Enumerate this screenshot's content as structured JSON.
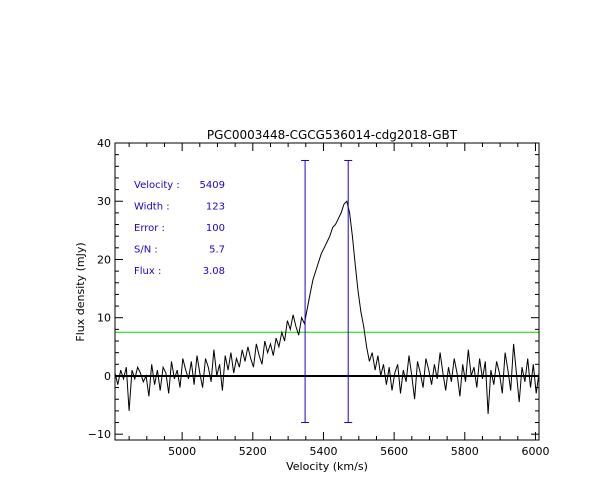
{
  "chart_data": {
    "type": "line",
    "title": "PGC0003448-CGCG536014-cdg2018-GBT",
    "xlabel": "Velocity (km/s)",
    "ylabel": "Flux density (mJy)",
    "xlim": [
      4810,
      6010
    ],
    "ylim": [
      -11,
      40
    ],
    "xticks": [
      5000,
      5200,
      5400,
      5600,
      5800,
      6000
    ],
    "yticks": [
      -10,
      0,
      10,
      20,
      30,
      40
    ],
    "xtick_labels": [
      "5000",
      "5200",
      "5400",
      "5600",
      "5800",
      "6000"
    ],
    "ytick_labels": [
      "−10",
      "0",
      "10",
      "20",
      "30",
      "40"
    ],
    "grid": false,
    "annotations": [
      {
        "label": "Velocity :",
        "value": "5409"
      },
      {
        "label": "Width :",
        "value": "123"
      },
      {
        "label": "Error :",
        "value": "100"
      },
      {
        "label": "S/N :",
        "value": "5.7"
      },
      {
        "label": "Flux :",
        "value": "3.08"
      }
    ],
    "colors": {
      "spectrum": "#000000",
      "markers": "#2200cc",
      "rms": "#00dd00",
      "annotation_text": "#2200cc",
      "zero_line": "#000000"
    },
    "zero_line": 0,
    "rms_line": 7.5,
    "velocity_markers": [
      5348,
      5470
    ],
    "marker_y_range": [
      -8,
      37
    ],
    "series": [
      {
        "x": [
          4810,
          4818,
          4826,
          4834,
          4842,
          4850,
          4858,
          4866,
          4874,
          4882,
          4890,
          4898,
          4906,
          4914,
          4922,
          4930,
          4938,
          4946,
          4954,
          4962,
          4970,
          4978,
          4986,
          4994,
          5002,
          5010,
          5018,
          5026,
          5034,
          5042,
          5050,
          5058,
          5066,
          5074,
          5082,
          5090,
          5098,
          5106,
          5114,
          5122,
          5130,
          5138,
          5146,
          5154,
          5162,
          5170,
          5178,
          5186,
          5194,
          5202,
          5210,
          5218,
          5226,
          5234,
          5242,
          5250,
          5258,
          5266,
          5274,
          5282,
          5290,
          5298,
          5306,
          5314,
          5322,
          5330,
          5338,
          5346,
          5354,
          5362,
          5370,
          5378,
          5386,
          5394,
          5402,
          5410,
          5418,
          5426,
          5434,
          5442,
          5450,
          5458,
          5466,
          5474,
          5482,
          5490,
          5498,
          5506,
          5514,
          5522,
          5530,
          5538,
          5546,
          5554,
          5562,
          5570,
          5578,
          5586,
          5594,
          5602,
          5610,
          5618,
          5626,
          5634,
          5642,
          5650,
          5658,
          5666,
          5674,
          5682,
          5690,
          5698,
          5706,
          5714,
          5722,
          5730,
          5738,
          5746,
          5754,
          5762,
          5770,
          5778,
          5786,
          5794,
          5802,
          5810,
          5818,
          5826,
          5834,
          5842,
          5850,
          5858,
          5866,
          5874,
          5882,
          5890,
          5898,
          5906,
          5914,
          5922,
          5930,
          5938,
          5946,
          5954,
          5962,
          5970,
          5978,
          5986,
          5994,
          6002,
          6010
        ],
        "y": [
          0.5,
          -1.5,
          1.0,
          -0.5,
          1.5,
          -6.0,
          1.0,
          -0.5,
          1.5,
          0.5,
          -1.0,
          0.0,
          -3.5,
          2.0,
          -1.5,
          1.0,
          -2.5,
          1.5,
          0.5,
          -3.0,
          2.5,
          -0.5,
          1.0,
          -2.0,
          3.0,
          1.0,
          -0.5,
          2.5,
          -1.5,
          3.5,
          0.5,
          -2.0,
          3.0,
          1.5,
          -1.0,
          4.5,
          0.0,
          2.0,
          -2.5,
          3.5,
          1.0,
          4.0,
          0.5,
          3.0,
          1.5,
          4.5,
          2.5,
          5.0,
          3.0,
          1.5,
          5.5,
          3.5,
          2.0,
          6.0,
          4.0,
          5.5,
          3.5,
          6.5,
          5.0,
          7.5,
          6.0,
          9.5,
          8.0,
          10.5,
          8.5,
          7.0,
          10.0,
          9.0,
          11.5,
          14.0,
          16.5,
          18.0,
          19.5,
          21.0,
          22.0,
          23.0,
          24.0,
          25.5,
          26.0,
          27.0,
          28.0,
          29.5,
          30.0,
          28.0,
          24.0,
          19.0,
          14.5,
          11.0,
          8.5,
          5.0,
          2.5,
          4.0,
          1.0,
          3.5,
          0.0,
          2.0,
          -1.5,
          1.5,
          -2.5,
          0.5,
          2.0,
          -3.0,
          1.0,
          -1.0,
          3.5,
          0.0,
          -4.0,
          2.5,
          0.5,
          -2.0,
          3.0,
          1.0,
          -1.5,
          2.0,
          -0.5,
          4.0,
          0.5,
          -2.5,
          1.5,
          -1.0,
          3.0,
          0.5,
          -3.5,
          2.0,
          -1.0,
          4.5,
          0.0,
          1.5,
          -2.0,
          3.0,
          -0.5,
          2.5,
          -6.5,
          1.0,
          -1.5,
          2.5,
          0.5,
          -3.0,
          4.0,
          1.0,
          -2.5,
          5.5,
          0.5,
          -4.5,
          1.5,
          -1.0,
          3.0,
          -2.0,
          2.0,
          -3.0,
          0.5
        ]
      }
    ]
  }
}
